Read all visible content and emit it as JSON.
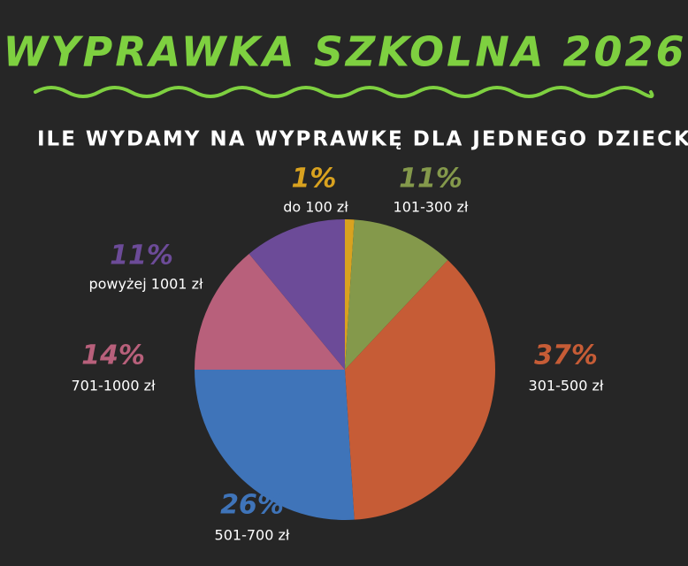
{
  "chart_data": {
    "type": "pie",
    "title": "WYPRAWKA SZKOLNA 2026",
    "subtitle": "ILE WYDAMY NA WYPRAWKĘ DLA JEDNEGO DZIECKA?",
    "categories": [
      "do 100 zł",
      "101-300 zł",
      "301-500 zł",
      "501-700 zł",
      "701-1000 zł",
      "powyżej 1001 zł"
    ],
    "values": [
      1,
      11,
      37,
      26,
      14,
      11
    ],
    "value_labels": [
      "1%",
      "11%",
      "37%",
      "26%",
      "14%",
      "11%"
    ],
    "colors": [
      "#d9a21f",
      "#84994b",
      "#c65c36",
      "#3f74b9",
      "#b8607b",
      "#6c4b98"
    ]
  }
}
